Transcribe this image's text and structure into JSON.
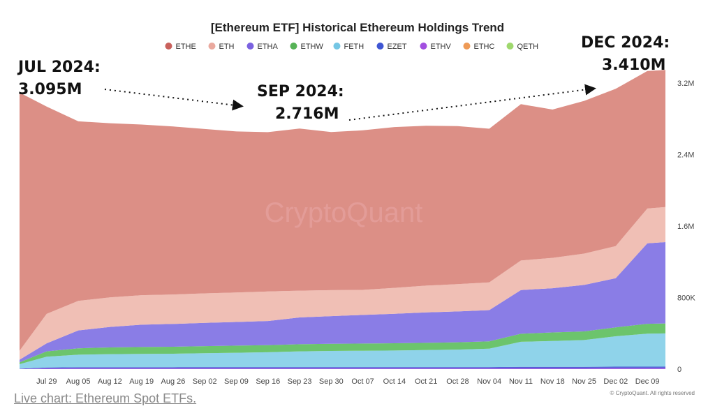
{
  "chart_data": {
    "type": "area",
    "stacked": true,
    "title": "[Ethereum ETF] Historical Ethereum Holdings Trend",
    "watermark": "CryptoQuant",
    "credit": "© CryptoQuant. All rights reserved",
    "x_ticks": [
      "Jul 29",
      "Aug 05",
      "Aug 12",
      "Aug 19",
      "Aug 26",
      "Sep 02",
      "Sep 09",
      "Sep 16",
      "Sep 23",
      "Sep 30",
      "Oct 07",
      "Oct 14",
      "Oct 21",
      "Oct 28",
      "Nov 04",
      "Nov 11",
      "Nov 18",
      "Nov 25",
      "Dec 02",
      "Dec 09"
    ],
    "y_ticks": [
      {
        "value": 0,
        "label": "0"
      },
      {
        "value": 800000,
        "label": "800K"
      },
      {
        "value": 1600000,
        "label": "1.6M"
      },
      {
        "value": 2400000,
        "label": "2.4M"
      },
      {
        "value": 3200000,
        "label": "3.2M"
      }
    ],
    "ylim": [
      0,
      3350000
    ],
    "x": [
      "2024-07-23",
      "2024-07-29",
      "2024-08-05",
      "2024-08-12",
      "2024-08-19",
      "2024-08-26",
      "2024-09-02",
      "2024-09-09",
      "2024-09-16",
      "2024-09-23",
      "2024-09-30",
      "2024-10-07",
      "2024-10-14",
      "2024-10-21",
      "2024-10-28",
      "2024-11-04",
      "2024-11-11",
      "2024-11-18",
      "2024-11-25",
      "2024-12-02",
      "2024-12-09",
      "2024-12-13"
    ],
    "series": [
      {
        "name": "ETHV",
        "color": "#9c5fe0",
        "values": [
          3000,
          8000,
          9000,
          10000,
          10000,
          10000,
          11000,
          11000,
          11000,
          11000,
          11000,
          11000,
          11000,
          11000,
          11000,
          11000,
          12000,
          12000,
          12000,
          13000,
          13000,
          13000
        ]
      },
      {
        "name": "EZET",
        "color": "#4e5fd6",
        "values": [
          2000,
          10000,
          12000,
          12000,
          12000,
          12000,
          12000,
          12000,
          12000,
          12000,
          12000,
          12000,
          12000,
          12000,
          12000,
          12000,
          13000,
          13000,
          13000,
          14000,
          14000,
          14000
        ]
      },
      {
        "name": "FETH",
        "color": "#8fd3ea",
        "values": [
          50000,
          120000,
          140000,
          145000,
          148000,
          150000,
          155000,
          160000,
          165000,
          175000,
          180000,
          182000,
          185000,
          190000,
          195000,
          205000,
          280000,
          290000,
          300000,
          340000,
          370000,
          372000
        ]
      },
      {
        "name": "ETHW",
        "color": "#6cc46c",
        "values": [
          20000,
          60000,
          72000,
          75000,
          77000,
          78000,
          79000,
          79000,
          80000,
          80000,
          80000,
          81000,
          81000,
          81000,
          82000,
          82000,
          90000,
          95000,
          97000,
          100000,
          110000,
          112000
        ]
      },
      {
        "name": "ETHA",
        "color": "#8a7de6",
        "values": [
          30000,
          90000,
          200000,
          230000,
          250000,
          255000,
          260000,
          265000,
          270000,
          300000,
          310000,
          320000,
          330000,
          340000,
          345000,
          350000,
          490000,
          495000,
          520000,
          550000,
          900000,
          910000
        ]
      },
      {
        "name": "ETH",
        "color": "#f0bfb5",
        "values": [
          100000,
          330000,
          330000,
          330000,
          330000,
          330000,
          330000,
          330000,
          330000,
          300000,
          290000,
          280000,
          290000,
          300000,
          305000,
          310000,
          330000,
          340000,
          350000,
          360000,
          390000,
          392000
        ]
      },
      {
        "name": "ETHE",
        "color": "#dc8f86",
        "values": [
          2890000,
          2320000,
          2010000,
          1950000,
          1910000,
          1880000,
          1840000,
          1803000,
          1784000,
          1814000,
          1770000,
          1786000,
          1800000,
          1790000,
          1770000,
          1720000,
          1750000,
          1660000,
          1710000,
          1760000,
          1540000,
          1535000
        ]
      }
    ],
    "legend": [
      {
        "name": "ETHE",
        "color": "#c9615c"
      },
      {
        "name": "ETH",
        "color": "#eaa99e"
      },
      {
        "name": "ETHA",
        "color": "#7b62e0"
      },
      {
        "name": "ETHW",
        "color": "#56b356"
      },
      {
        "name": "FETH",
        "color": "#74c6e4"
      },
      {
        "name": "EZET",
        "color": "#3f56d3"
      },
      {
        "name": "ETHV",
        "color": "#a24fe0"
      },
      {
        "name": "ETHC",
        "color": "#ee9a56"
      },
      {
        "name": "QETH",
        "color": "#9fd86e"
      }
    ],
    "legend_position": "top",
    "grid": false,
    "annotations": [
      {
        "label": "JUL 2024:",
        "value_label": "3.095M"
      },
      {
        "label": "SEP 2024:",
        "value_label": "2.716M"
      },
      {
        "label": "DEC 2024:",
        "value_label": "3.410M"
      }
    ]
  },
  "footer": {
    "link_text": "Live chart: Ethereum Spot ETFs."
  }
}
